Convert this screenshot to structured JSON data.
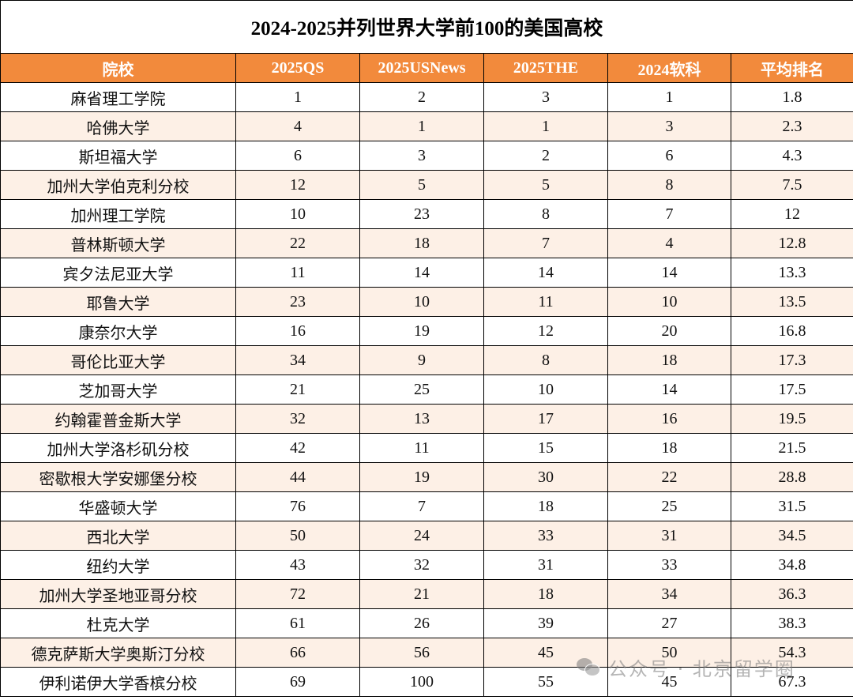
{
  "title": "2024-2025并列世界大学前100的美国高校",
  "headers": [
    "院校",
    "2025QS",
    "2025USNews",
    "2025THE",
    "2024软科",
    "平均排名"
  ],
  "rows": [
    [
      "麻省理工学院",
      "1",
      "2",
      "3",
      "1",
      "1.8"
    ],
    [
      "哈佛大学",
      "4",
      "1",
      "1",
      "3",
      "2.3"
    ],
    [
      "斯坦福大学",
      "6",
      "3",
      "2",
      "6",
      "4.3"
    ],
    [
      "加州大学伯克利分校",
      "12",
      "5",
      "5",
      "8",
      "7.5"
    ],
    [
      "加州理工学院",
      "10",
      "23",
      "8",
      "7",
      "12"
    ],
    [
      "普林斯顿大学",
      "22",
      "18",
      "7",
      "4",
      "12.8"
    ],
    [
      "宾夕法尼亚大学",
      "11",
      "14",
      "14",
      "14",
      "13.3"
    ],
    [
      "耶鲁大学",
      "23",
      "10",
      "11",
      "10",
      "13.5"
    ],
    [
      "康奈尔大学",
      "16",
      "19",
      "12",
      "20",
      "16.8"
    ],
    [
      "哥伦比亚大学",
      "34",
      "9",
      "8",
      "18",
      "17.3"
    ],
    [
      "芝加哥大学",
      "21",
      "25",
      "10",
      "14",
      "17.5"
    ],
    [
      "约翰霍普金斯大学",
      "32",
      "13",
      "17",
      "16",
      "19.5"
    ],
    [
      "加州大学洛杉矶分校",
      "42",
      "11",
      "15",
      "18",
      "21.5"
    ],
    [
      "密歇根大学安娜堡分校",
      "44",
      "19",
      "30",
      "22",
      "28.8"
    ],
    [
      "华盛顿大学",
      "76",
      "7",
      "18",
      "25",
      "31.5"
    ],
    [
      "西北大学",
      "50",
      "24",
      "33",
      "31",
      "34.5"
    ],
    [
      "纽约大学",
      "43",
      "32",
      "31",
      "33",
      "34.8"
    ],
    [
      "加州大学圣地亚哥分校",
      "72",
      "21",
      "18",
      "34",
      "36.3"
    ],
    [
      "杜克大学",
      "61",
      "26",
      "39",
      "27",
      "38.3"
    ],
    [
      "德克萨斯大学奥斯汀分校",
      "66",
      "56",
      "45",
      "50",
      "54.3"
    ],
    [
      "伊利诺伊大学香槟分校",
      "69",
      "100",
      "55",
      "45",
      "67.3"
    ]
  ],
  "watermark": {
    "text": "公众号 · 北京留学圈",
    "icon": "wechat-icon"
  },
  "colors": {
    "header_bg": "#F28A3C",
    "header_text": "#FFFFFF",
    "alt_row_bg": "#FDF0E6"
  }
}
